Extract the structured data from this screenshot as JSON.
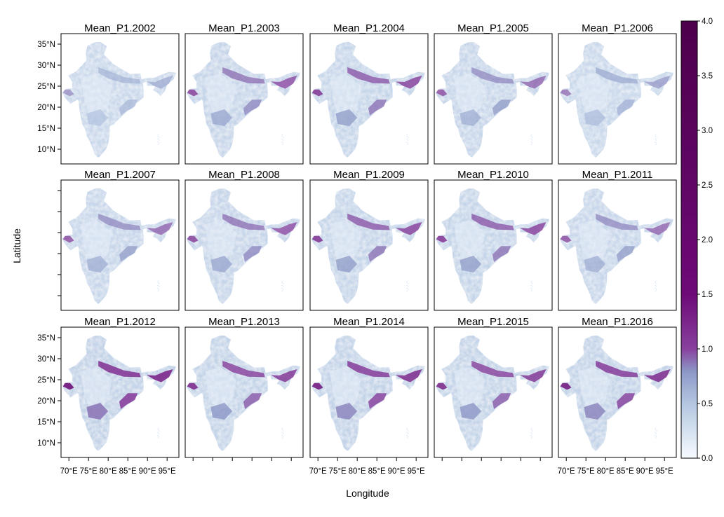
{
  "figure": {
    "xlabel": "Longitude",
    "ylabel": "Latitude"
  },
  "panels": [
    {
      "title": "Mean_P1.2002",
      "year": 2002,
      "level": 0.35
    },
    {
      "title": "Mean_P1.2003",
      "year": 2003,
      "level": 0.55
    },
    {
      "title": "Mean_P1.2004",
      "year": 2004,
      "level": 0.6
    },
    {
      "title": "Mean_P1.2005",
      "year": 2005,
      "level": 0.5
    },
    {
      "title": "Mean_P1.2006",
      "year": 2006,
      "level": 0.4
    },
    {
      "title": "Mean_P1.2007",
      "year": 2007,
      "level": 0.5
    },
    {
      "title": "Mean_P1.2008",
      "year": 2008,
      "level": 0.55
    },
    {
      "title": "Mean_P1.2009",
      "year": 2009,
      "level": 0.6
    },
    {
      "title": "Mean_P1.2010",
      "year": 2010,
      "level": 0.6
    },
    {
      "title": "Mean_P1.2011",
      "year": 2011,
      "level": 0.5
    },
    {
      "title": "Mean_P1.2012",
      "year": 2012,
      "level": 0.75
    },
    {
      "title": "Mean_P1.2013",
      "year": 2013,
      "level": 0.65
    },
    {
      "title": "Mean_P1.2014",
      "year": 2014,
      "level": 0.7
    },
    {
      "title": "Mean_P1.2015",
      "year": 2015,
      "level": 0.65
    },
    {
      "title": "Mean_P1.2016",
      "year": 2016,
      "level": 0.7
    }
  ],
  "x_ticks": [
    {
      "value": 70,
      "label": "70°E"
    },
    {
      "value": 75,
      "label": "75°E"
    },
    {
      "value": 80,
      "label": "80°E"
    },
    {
      "value": 85,
      "label": "85°E"
    },
    {
      "value": 90,
      "label": "90°E"
    },
    {
      "value": 95,
      "label": "95°E"
    }
  ],
  "y_ticks": [
    {
      "value": 10,
      "label": "10°N"
    },
    {
      "value": 15,
      "label": "15°N"
    },
    {
      "value": 20,
      "label": "20°N"
    },
    {
      "value": 25,
      "label": "25°N"
    },
    {
      "value": 30,
      "label": "30°N"
    },
    {
      "value": 35,
      "label": "35°N"
    }
  ],
  "extent": {
    "lon": [
      68,
      98
    ],
    "lat": [
      6.5,
      37.5
    ]
  },
  "colorbar": {
    "min": 0,
    "max": 4,
    "ticks": [
      {
        "value": 0.0,
        "label": "0.0"
      },
      {
        "value": 0.5,
        "label": "0.5"
      },
      {
        "value": 1.0,
        "label": "1.0"
      },
      {
        "value": 1.5,
        "label": "1.5"
      },
      {
        "value": 2.0,
        "label": "2.0"
      },
      {
        "value": 2.5,
        "label": "2.5"
      },
      {
        "value": 3.0,
        "label": "3.0"
      },
      {
        "value": 3.5,
        "label": "3.5"
      },
      {
        "value": 4.0,
        "label": "4.0"
      }
    ],
    "colors": [
      {
        "value": 0.0,
        "color": "#f7fbff"
      },
      {
        "value": 0.5,
        "color": "#b3c7e1"
      },
      {
        "value": 0.8,
        "color": "#8c96c6"
      },
      {
        "value": 1.0,
        "color": "#88419d"
      },
      {
        "value": 1.5,
        "color": "#6e0a78"
      },
      {
        "value": 4.0,
        "color": "#4d004b"
      }
    ]
  }
}
